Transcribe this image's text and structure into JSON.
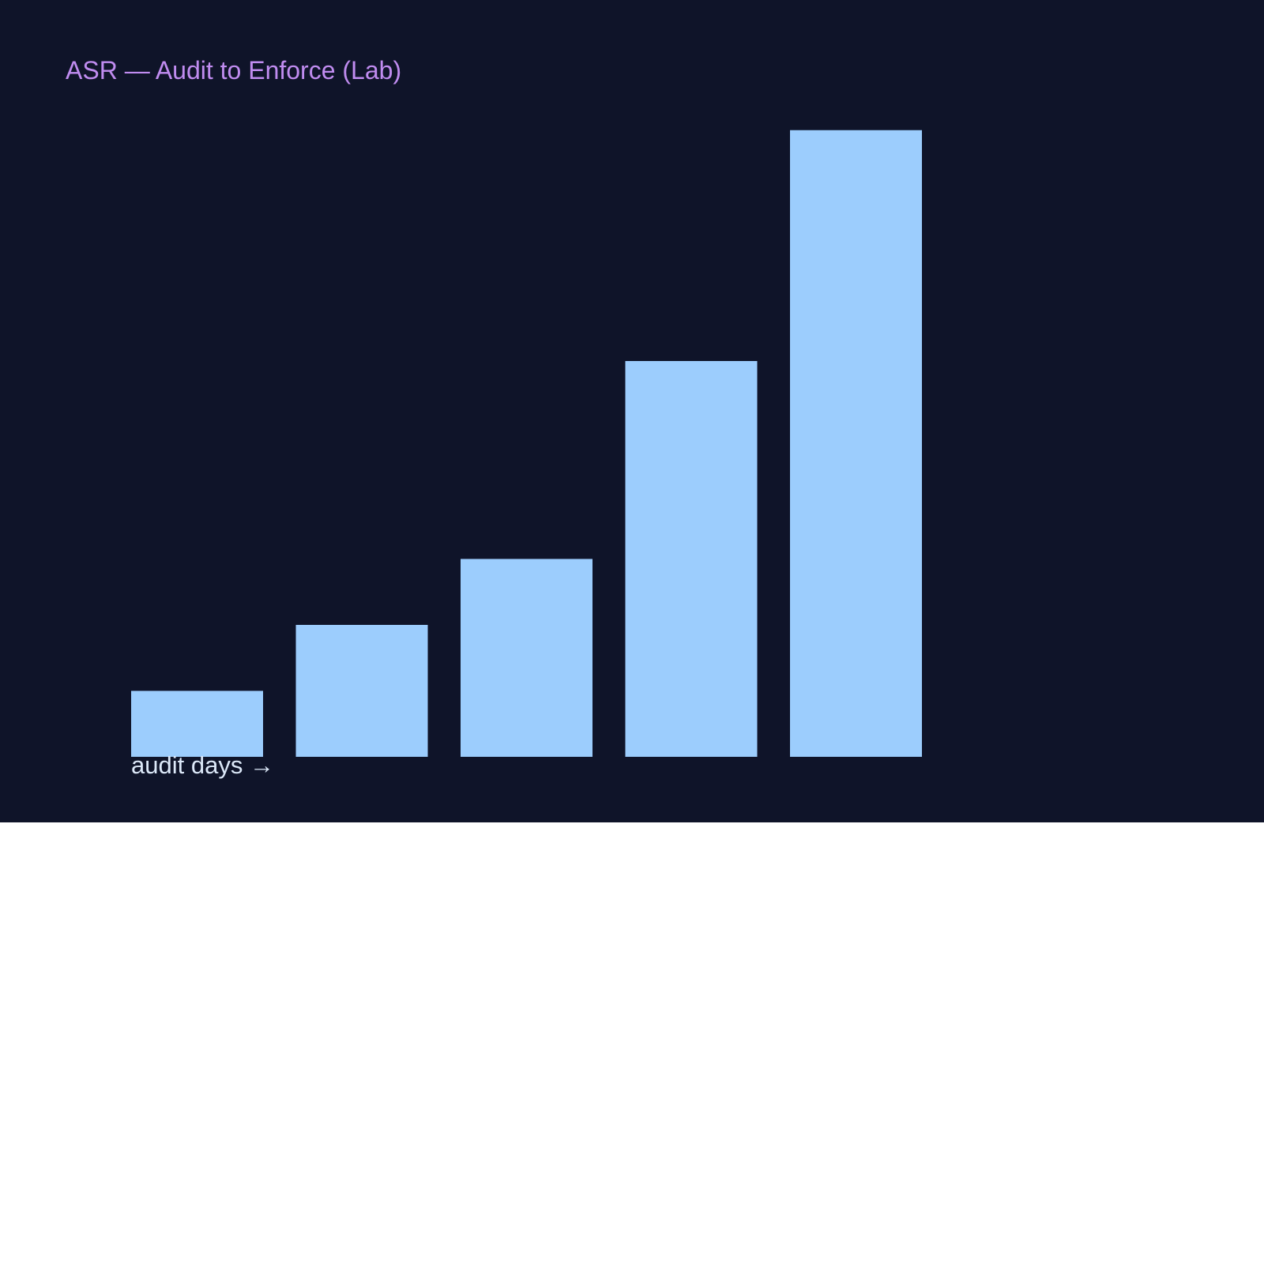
{
  "chart_data": {
    "type": "bar",
    "title": "ASR — Audit to Enforce (Lab)",
    "x_caption": "audit days →",
    "categories": [
      "",
      "",
      "",
      "",
      ""
    ],
    "values": [
      10,
      20,
      30,
      60,
      95
    ],
    "ylim": [
      0,
      100
    ],
    "grid": false,
    "legend": "none",
    "colors": {
      "background": "#0f1429",
      "bar": "#9ccdfd",
      "title": "#c08cf0",
      "caption": "#dce8f8"
    }
  }
}
